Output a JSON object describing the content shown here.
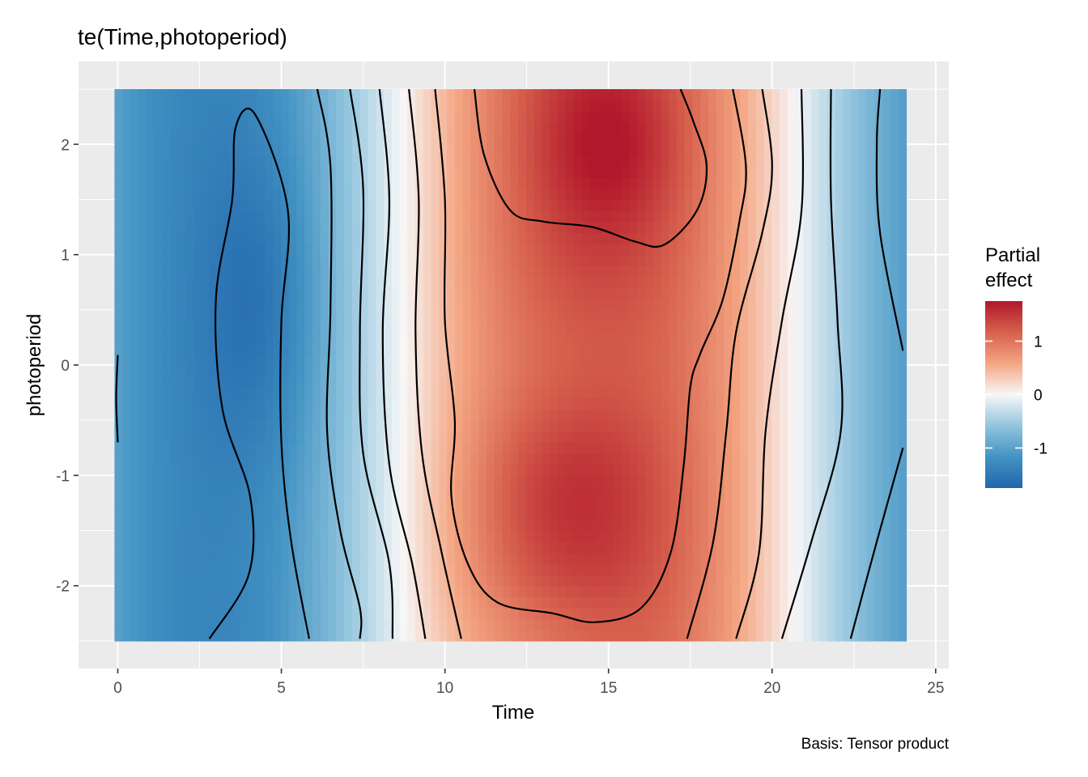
{
  "chart_data": {
    "type": "heatmap",
    "title": "te(Time,photoperiod)",
    "xlabel": "Time",
    "ylabel": "photoperiod",
    "caption": "Basis: Tensor product",
    "xlim": [
      -1.2,
      25.4
    ],
    "ylim": [
      -2.75,
      2.75
    ],
    "data_x_range": [
      -0.1,
      24.1
    ],
    "data_y_range": [
      -2.5,
      2.5
    ],
    "x_ticks": [
      0,
      5,
      10,
      15,
      20,
      25
    ],
    "x_tick_labels": [
      "0",
      "5",
      "10",
      "15",
      "20",
      "25"
    ],
    "y_ticks": [
      -2,
      -1,
      0,
      1,
      2
    ],
    "y_tick_labels": [
      "-2",
      "-1",
      "0",
      "1",
      "2"
    ],
    "grid": true,
    "legend": {
      "title_line1": "Partial",
      "title_line2": "effect",
      "position": "right",
      "range": [
        -1.75,
        1.75
      ],
      "breaks": [
        1,
        0,
        -1
      ],
      "break_labels": [
        "1",
        "0",
        "-1"
      ],
      "palette": [
        "#2166ac",
        "#4393c3",
        "#92c5de",
        "#f7f7f7",
        "#f4a582",
        "#d6604d",
        "#b2182b"
      ]
    },
    "contours": [
      {
        "name": "contour-1",
        "points": [
          [
            0.0,
            0.09
          ],
          [
            -0.05,
            -0.3
          ],
          [
            0.0,
            -0.7
          ]
        ]
      },
      {
        "name": "contour-2",
        "points": [
          [
            2.8,
            -2.48
          ],
          [
            4.0,
            -1.9
          ],
          [
            4.05,
            -1.2
          ],
          [
            3.2,
            -0.4
          ],
          [
            3.0,
            0.6
          ],
          [
            3.5,
            1.5
          ],
          [
            3.6,
            2.15
          ],
          [
            4.2,
            2.27
          ],
          [
            5.2,
            1.4
          ],
          [
            5.0,
            0.4
          ],
          [
            5.0,
            -0.7
          ],
          [
            5.3,
            -1.6
          ],
          [
            5.85,
            -2.48
          ]
        ]
      },
      {
        "name": "contour-3",
        "points": [
          [
            6.1,
            2.5
          ],
          [
            6.5,
            1.8
          ],
          [
            6.5,
            0.5
          ],
          [
            6.4,
            -0.6
          ],
          [
            6.8,
            -1.5
          ],
          [
            7.4,
            -2.2
          ],
          [
            7.4,
            -2.48
          ]
        ]
      },
      {
        "name": "contour-4",
        "points": [
          [
            7.1,
            2.5
          ],
          [
            7.5,
            1.6
          ],
          [
            7.4,
            0.3
          ],
          [
            7.5,
            -0.8
          ],
          [
            8.3,
            -1.8
          ],
          [
            8.4,
            -2.48
          ]
        ]
      },
      {
        "name": "contour-5",
        "points": [
          [
            8.0,
            2.5
          ],
          [
            8.3,
            1.5
          ],
          [
            8.1,
            0.3
          ],
          [
            8.3,
            -0.9
          ],
          [
            9.0,
            -1.8
          ],
          [
            9.4,
            -2.48
          ]
        ]
      },
      {
        "name": "contour-6",
        "points": [
          [
            8.9,
            2.5
          ],
          [
            9.2,
            1.5
          ],
          [
            9.1,
            0.3
          ],
          [
            9.3,
            -0.8
          ],
          [
            9.9,
            -1.7
          ],
          [
            10.5,
            -2.48
          ]
        ]
      },
      {
        "name": "contour-7",
        "points": [
          [
            9.7,
            2.5
          ],
          [
            10.0,
            1.5
          ],
          [
            10.0,
            0.4
          ],
          [
            10.3,
            -0.5
          ],
          [
            10.2,
            -1.2
          ],
          [
            10.7,
            -1.8
          ],
          [
            11.6,
            -2.15
          ],
          [
            13.3,
            -2.25
          ],
          [
            14.6,
            -2.33
          ],
          [
            16.0,
            -2.2
          ],
          [
            16.9,
            -1.7
          ],
          [
            17.3,
            -0.9
          ],
          [
            17.5,
            -0.2
          ],
          [
            17.8,
            0.1
          ],
          [
            18.5,
            0.6
          ],
          [
            19.0,
            1.3
          ],
          [
            19.2,
            1.8
          ],
          [
            18.8,
            2.5
          ]
        ]
      },
      {
        "name": "contour-8",
        "points": [
          [
            10.9,
            2.5
          ],
          [
            11.2,
            1.9
          ],
          [
            12.0,
            1.4
          ],
          [
            13.0,
            1.3
          ],
          [
            14.5,
            1.25
          ],
          [
            15.8,
            1.12
          ],
          [
            16.7,
            1.09
          ],
          [
            17.7,
            1.4
          ],
          [
            18.0,
            1.8
          ],
          [
            17.6,
            2.2
          ],
          [
            17.2,
            2.5
          ]
        ]
      },
      {
        "name": "contour-9",
        "points": [
          [
            17.4,
            -2.48
          ],
          [
            18.2,
            -1.6
          ],
          [
            18.6,
            -0.6
          ],
          [
            18.9,
            0.3
          ],
          [
            19.7,
            1.2
          ],
          [
            20.0,
            1.8
          ],
          [
            19.7,
            2.5
          ]
        ]
      },
      {
        "name": "contour-10",
        "points": [
          [
            18.9,
            -2.48
          ],
          [
            19.6,
            -1.7
          ],
          [
            19.8,
            -0.6
          ],
          [
            20.3,
            0.4
          ],
          [
            20.9,
            1.4
          ],
          [
            20.9,
            2.5
          ]
        ]
      },
      {
        "name": "contour-11",
        "points": [
          [
            20.3,
            -2.48
          ],
          [
            21.2,
            -1.6
          ],
          [
            22.1,
            -0.6
          ],
          [
            22.0,
            0.4
          ],
          [
            21.8,
            1.5
          ],
          [
            21.8,
            2.5
          ]
        ]
      },
      {
        "name": "contour-12",
        "points": [
          [
            22.4,
            -2.48
          ],
          [
            23.2,
            -1.6
          ],
          [
            24.0,
            -0.75
          ]
        ]
      },
      {
        "name": "contour-13",
        "points": [
          [
            24.0,
            0.13
          ],
          [
            23.3,
            1.2
          ],
          [
            23.2,
            2.0
          ],
          [
            23.3,
            2.5
          ]
        ]
      }
    ]
  }
}
